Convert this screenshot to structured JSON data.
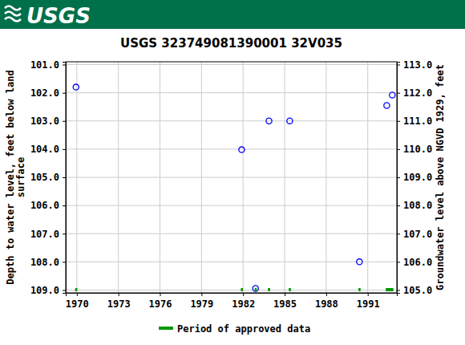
{
  "header": {
    "logo": "USGS"
  },
  "chart_data": {
    "type": "scatter",
    "title": "USGS 323749081390001 32V035",
    "ylabel": [
      "Depth to water level, feet below land",
      "surface"
    ],
    "y2label": "Groundwater level above NGVD 1929, feet",
    "xlim": [
      1969.2,
      1993.1
    ],
    "xticks": [
      1970,
      1973,
      1976,
      1979,
      1982,
      1985,
      1988,
      1991
    ],
    "ylim": [
      109.1,
      100.9
    ],
    "yticks": [
      {
        "value": 101,
        "label": "101.0"
      },
      {
        "value": 102,
        "label": "102.0"
      },
      {
        "value": 103,
        "label": "103.0"
      },
      {
        "value": 104,
        "label": "104.0"
      },
      {
        "value": 105,
        "label": "105.0"
      },
      {
        "value": 106,
        "label": "106.0"
      },
      {
        "value": 107,
        "label": "107.0"
      },
      {
        "value": 108,
        "label": "108.0"
      },
      {
        "value": 109,
        "label": "109.0"
      }
    ],
    "y2lim": [
      104.9,
      113.1
    ],
    "y2ticks": [
      {
        "value": 105,
        "label": "105.0"
      },
      {
        "value": 106,
        "label": "106.0"
      },
      {
        "value": 107,
        "label": "107.0"
      },
      {
        "value": 108,
        "label": "108.0"
      },
      {
        "value": 109,
        "label": "109.0"
      },
      {
        "value": 110,
        "label": "110.0"
      },
      {
        "value": 111,
        "label": "111.0"
      },
      {
        "value": 112,
        "label": "112.0"
      },
      {
        "value": 113,
        "label": "113.0"
      }
    ],
    "grid": true,
    "legend": "bottom",
    "series": [
      {
        "type": "scatter",
        "marker": "open-circle",
        "color": "#0000ff",
        "x": [
          1969.94,
          1981.9,
          1982.9,
          1983.87,
          1985.37,
          1990.4,
          1992.37,
          1992.77
        ],
        "values": [
          101.8,
          104.02,
          108.94,
          103.0,
          103.0,
          108.0,
          102.45,
          102.08
        ]
      },
      {
        "type": "period",
        "name": "Period of approved data",
        "color": "#009900",
        "starts": [
          1969.88,
          1981.84,
          1982.84,
          1983.8,
          1985.3,
          1990.33,
          1992.3
        ],
        "ends": [
          1970.03,
          1981.99,
          1982.99,
          1983.95,
          1985.45,
          1990.48,
          1992.85
        ]
      }
    ]
  }
}
